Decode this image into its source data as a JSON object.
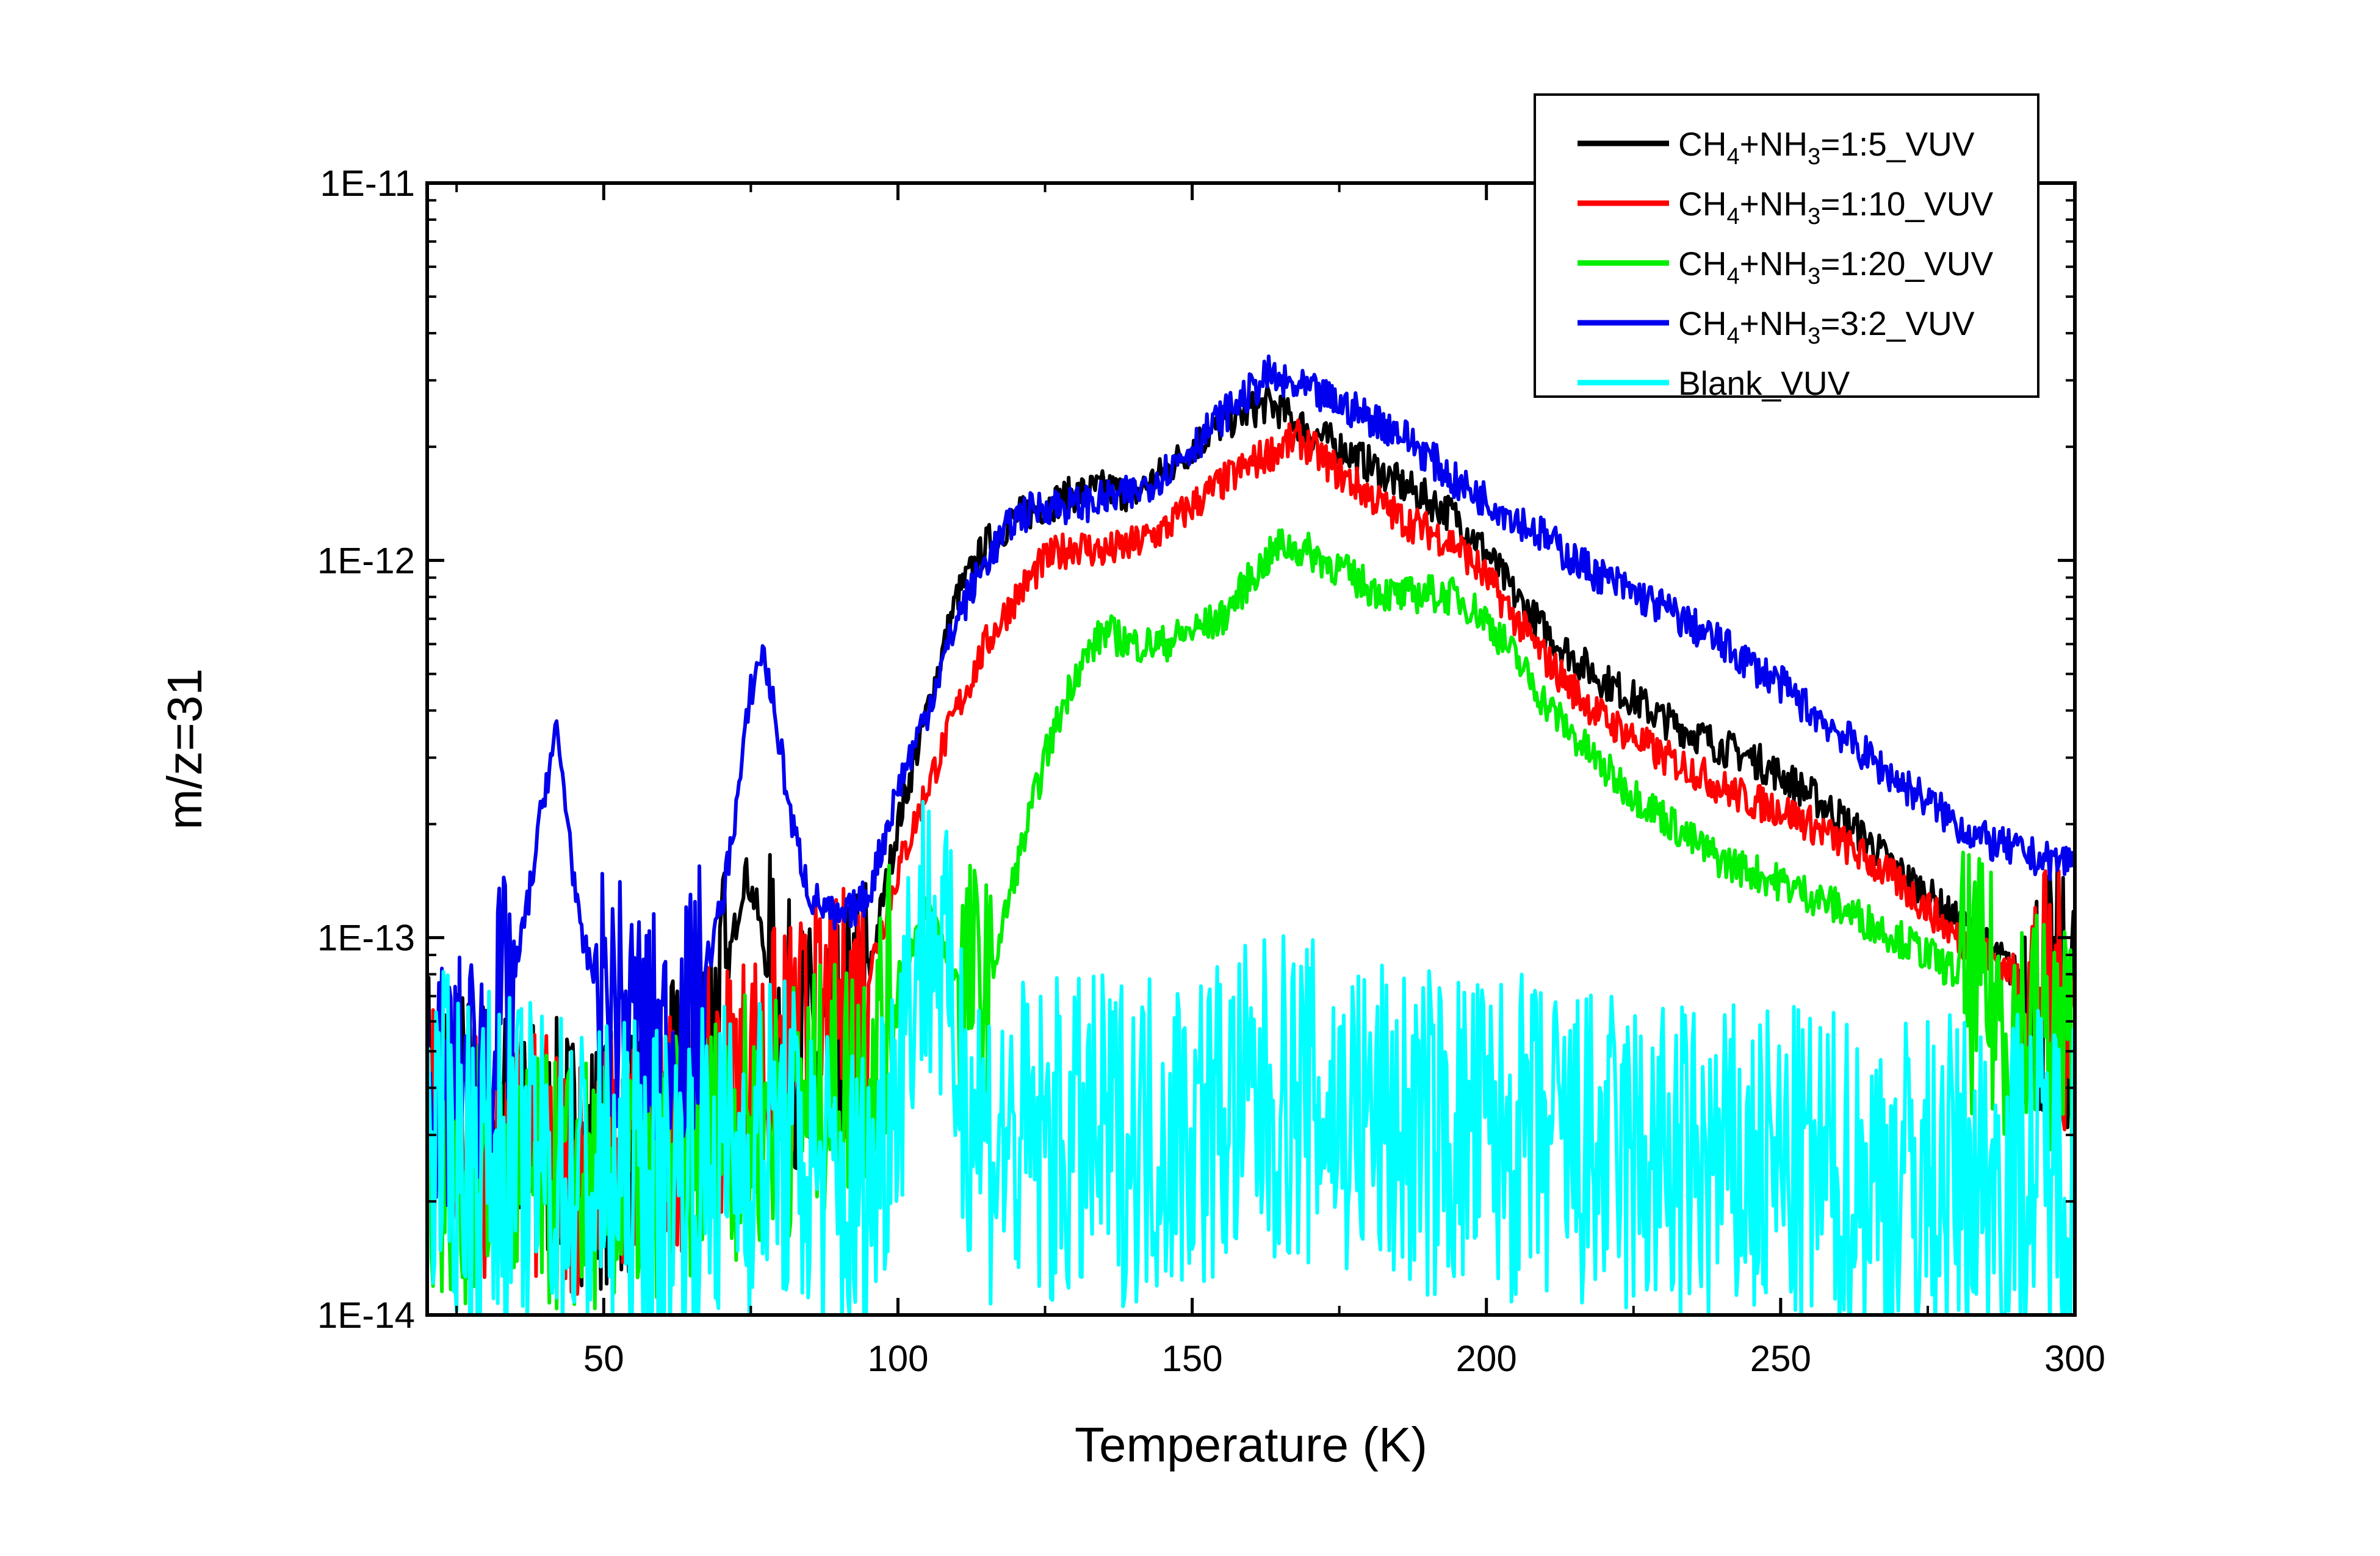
{
  "chart_data": {
    "type": "line",
    "title": "",
    "xlabel": "Temperature (K)",
    "ylabel": "m/z=31",
    "xlim": [
      20,
      300
    ],
    "ylim": [
      1e-14,
      1e-11
    ],
    "y_scale": "log",
    "x_ticks": [
      50,
      100,
      150,
      200,
      250,
      300
    ],
    "y_ticks": [
      1e-14,
      1e-13,
      1e-12,
      1e-11
    ],
    "y_tick_labels": [
      "1E-14",
      "1E-13",
      "1E-12",
      "1E-11"
    ],
    "grid": false,
    "legend_position": "top-right",
    "series": [
      {
        "name": "CH4+NH3=1:5_VUV",
        "legend_parts": [
          [
            "CH",
            ""
          ],
          [
            "4",
            "sub"
          ],
          [
            "+NH",
            ""
          ],
          [
            "3",
            "sub"
          ],
          [
            "=1:5_VUV",
            ""
          ]
        ],
        "color": "#000000",
        "x": [
          20,
          30,
          40,
          50,
          60,
          65,
          70,
          72,
          74,
          76,
          78,
          80,
          85,
          90,
          95,
          100,
          105,
          110,
          115,
          120,
          125,
          130,
          135,
          140,
          145,
          150,
          155,
          160,
          163,
          165,
          170,
          175,
          180,
          185,
          190,
          195,
          200,
          205,
          210,
          215,
          220,
          225,
          230,
          235,
          240,
          245,
          250,
          255,
          260,
          265,
          270,
          275,
          280,
          285,
          290,
          295,
          300
        ],
        "y": [
          4e-14,
          3.2e-14,
          2.8e-14,
          2.6e-14,
          3e-14,
          4.5e-14,
          7e-14,
          1e-13,
          1.5e-13,
          1.2e-13,
          8e-14,
          6e-14,
          5e-14,
          5e-14,
          8e-14,
          2e-13,
          4e-13,
          8e-13,
          1.1e-12,
          1.3e-12,
          1.4e-12,
          1.5e-12,
          1.55e-12,
          1.5e-12,
          1.7e-12,
          2e-12,
          2.3e-12,
          2.5e-12,
          2.6e-12,
          2.5e-12,
          2.2e-12,
          2e-12,
          1.8e-12,
          1.6e-12,
          1.45e-12,
          1.3e-12,
          1.05e-12,
          8e-13,
          6.5e-13,
          5.5e-13,
          4.8e-13,
          4.3e-13,
          3.8e-13,
          3.5e-13,
          3.2e-13,
          3e-13,
          2.7e-13,
          2.4e-13,
          2.1e-13,
          1.8e-13,
          1.5e-13,
          1.3e-13,
          1.1e-13,
          9.5e-14,
          8e-14,
          7e-14,
          6.5e-14
        ]
      },
      {
        "name": "CH4+NH3=1:10_VUV",
        "legend_parts": [
          [
            "CH",
            ""
          ],
          [
            "4",
            "sub"
          ],
          [
            "+NH",
            ""
          ],
          [
            "3",
            "sub"
          ],
          [
            "=1:10_VUV",
            ""
          ]
        ],
        "color": "#ff0000",
        "x": [
          20,
          30,
          40,
          50,
          60,
          70,
          80,
          90,
          95,
          100,
          105,
          110,
          115,
          120,
          125,
          130,
          135,
          140,
          145,
          150,
          155,
          160,
          165,
          168,
          170,
          175,
          180,
          185,
          190,
          195,
          200,
          205,
          210,
          215,
          220,
          225,
          230,
          235,
          240,
          245,
          250,
          255,
          260,
          265,
          270,
          275,
          280,
          285,
          290,
          295,
          300
        ],
        "y": [
          3e-14,
          2.8e-14,
          2.5e-14,
          2.5e-14,
          3e-14,
          4e-14,
          5e-14,
          6e-14,
          8e-14,
          1.5e-13,
          2.5e-13,
          4e-13,
          6e-13,
          8e-13,
          1e-12,
          1.1e-12,
          1.05e-12,
          1.1e-12,
          1.2e-12,
          1.4e-12,
          1.6e-12,
          1.8e-12,
          2e-12,
          2.1e-12,
          2e-12,
          1.7e-12,
          1.5e-12,
          1.3e-12,
          1.2e-12,
          1.1e-12,
          9e-13,
          7e-13,
          5.5e-13,
          4.5e-13,
          3.8e-13,
          3.4e-13,
          3e-13,
          2.8e-13,
          2.5e-13,
          2.3e-13,
          2.2e-13,
          2e-13,
          1.8e-13,
          1.6e-13,
          1.4e-13,
          1.2e-13,
          1e-13,
          9e-14,
          8e-14,
          7e-14,
          6.5e-14
        ]
      },
      {
        "name": "CH4+NH3=1:20_VUV",
        "legend_parts": [
          [
            "CH",
            ""
          ],
          [
            "4",
            "sub"
          ],
          [
            "+NH",
            ""
          ],
          [
            "3",
            "sub"
          ],
          [
            "=1:20_VUV",
            ""
          ]
        ],
        "color": "#00ee00",
        "x": [
          20,
          30,
          40,
          50,
          60,
          70,
          80,
          90,
          95,
          100,
          105,
          110,
          115,
          120,
          125,
          130,
          135,
          140,
          145,
          150,
          155,
          160,
          165,
          170,
          175,
          180,
          185,
          190,
          195,
          200,
          205,
          210,
          215,
          220,
          225,
          230,
          235,
          240,
          245,
          250,
          255,
          260,
          265,
          270,
          275,
          280,
          285,
          290,
          295,
          300
        ],
        "y": [
          2.5e-14,
          2.3e-14,
          2.2e-14,
          2.2e-14,
          2.5e-14,
          3e-14,
          3.5e-14,
          4e-14,
          5e-14,
          8e-14,
          1.2e-13,
          8e-14,
          7e-14,
          1.5e-13,
          3e-13,
          5e-13,
          6.5e-13,
          6e-13,
          6e-13,
          6.5e-13,
          7e-13,
          9e-13,
          1.1e-12,
          1.05e-12,
          9.5e-13,
          8.5e-13,
          8e-13,
          8.2e-13,
          8e-13,
          7e-13,
          5.5e-13,
          4.2e-13,
          3.4e-13,
          2.8e-13,
          2.4e-13,
          2.1e-13,
          1.8e-13,
          1.6e-13,
          1.5e-13,
          1.4e-13,
          1.3e-13,
          1.2e-13,
          1.1e-13,
          1e-13,
          9e-14,
          8e-14,
          7e-14,
          6e-14,
          5.5e-14,
          5e-14
        ]
      },
      {
        "name": "CH4+NH3=3:2_VUV",
        "legend_parts": [
          [
            "CH",
            ""
          ],
          [
            "4",
            "sub"
          ],
          [
            "+NH",
            ""
          ],
          [
            "3",
            "sub"
          ],
          [
            "=3:2_VUV",
            ""
          ]
        ],
        "color": "#0000ee",
        "x": [
          20,
          25,
          30,
          35,
          38,
          40,
          42,
          44,
          46,
          50,
          55,
          60,
          65,
          70,
          73,
          75,
          77,
          79,
          82,
          85,
          90,
          95,
          100,
          105,
          110,
          115,
          120,
          125,
          130,
          135,
          140,
          145,
          150,
          155,
          160,
          163,
          165,
          170,
          175,
          180,
          185,
          190,
          195,
          200,
          205,
          210,
          215,
          220,
          225,
          230,
          235,
          240,
          245,
          250,
          255,
          260,
          265,
          270,
          275,
          280,
          285,
          290,
          295,
          300
        ],
        "y": [
          4e-14,
          4e-14,
          5e-14,
          8e-14,
          1.5e-13,
          2.5e-13,
          3.5e-13,
          2e-13,
          1e-13,
          7e-14,
          6e-14,
          5e-14,
          6e-14,
          1.2e-13,
          2.5e-13,
          4.5e-13,
          5.8e-13,
          4e-13,
          2e-13,
          1.3e-13,
          1.1e-13,
          1.3e-13,
          2.5e-13,
          4e-13,
          7e-13,
          1e-12,
          1.3e-12,
          1.4e-12,
          1.4e-12,
          1.45e-12,
          1.5e-12,
          1.7e-12,
          2e-12,
          2.4e-12,
          2.8e-12,
          3.1e-12,
          2.95e-12,
          2.8e-12,
          2.6e-12,
          2.4e-12,
          2.2e-12,
          1.9e-12,
          1.6e-12,
          1.45e-12,
          1.3e-12,
          1.15e-12,
          1e-12,
          9e-13,
          8.2e-13,
          7.5e-13,
          6.7e-13,
          6e-13,
          5.3e-13,
          4.7e-13,
          4e-13,
          3.5e-13,
          3e-13,
          2.6e-13,
          2.3e-13,
          2e-13,
          1.8e-13,
          1.7e-13,
          1.6e-13,
          1.6e-13
        ]
      },
      {
        "name": "Blank_VUV",
        "legend_parts": [
          [
            "Blank_VUV",
            ""
          ]
        ],
        "color": "#00ffff",
        "x": [
          20,
          30,
          40,
          50,
          60,
          70,
          80,
          90,
          95,
          100,
          103,
          106,
          110,
          115,
          120,
          130,
          140,
          150,
          160,
          165,
          170,
          180,
          190,
          200,
          210,
          220,
          230,
          240,
          250,
          260,
          270,
          280,
          290,
          300
        ],
        "y": [
          3e-14,
          2.6e-14,
          2.4e-14,
          2.2e-14,
          2.2e-14,
          2.5e-14,
          3e-14,
          2e-14,
          2e-14,
          5e-14,
          9e-14,
          1.1e-13,
          5e-14,
          3e-14,
          2.8e-14,
          2.8e-14,
          3e-14,
          3.2e-14,
          3.5e-14,
          3.8e-14,
          3.6e-14,
          3.3e-14,
          3e-14,
          3e-14,
          2.8e-14,
          2.6e-14,
          2.5e-14,
          2.4e-14,
          2.4e-14,
          2.3e-14,
          2.3e-14,
          2.3e-14,
          2.4e-14,
          2.5e-14
        ]
      }
    ]
  }
}
